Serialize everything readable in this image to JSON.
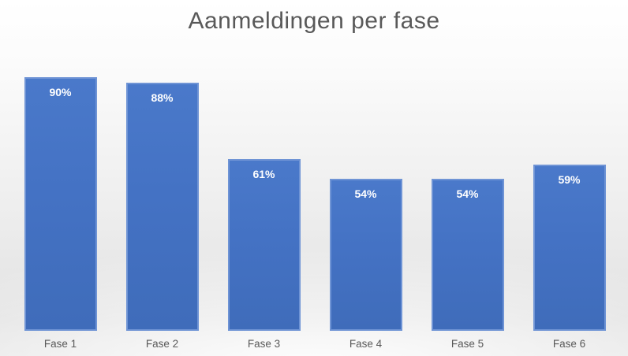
{
  "title": "Aanmeldingen per fase",
  "chart_data": {
    "type": "bar",
    "title": "Aanmeldingen per fase",
    "categories": [
      "Fase 1",
      "Fase 2",
      "Fase 3",
      "Fase 4",
      "Fase 5",
      "Fase 6"
    ],
    "values": [
      90,
      88,
      61,
      54,
      54,
      59
    ],
    "value_labels": [
      "90%",
      "88%",
      "61%",
      "54%",
      "54%",
      "59%"
    ],
    "xlabel": "",
    "ylabel": "",
    "ylim": [
      0,
      100
    ],
    "grid": false,
    "legend": "none",
    "y_axis_visible": false,
    "data_label_position": "inside-top",
    "colors": {
      "bar_fill": "#4472c4",
      "bar_border": "#6f94d5",
      "value_label": "#ffffff",
      "axis_text": "#595959",
      "title_text": "#595959"
    }
  }
}
